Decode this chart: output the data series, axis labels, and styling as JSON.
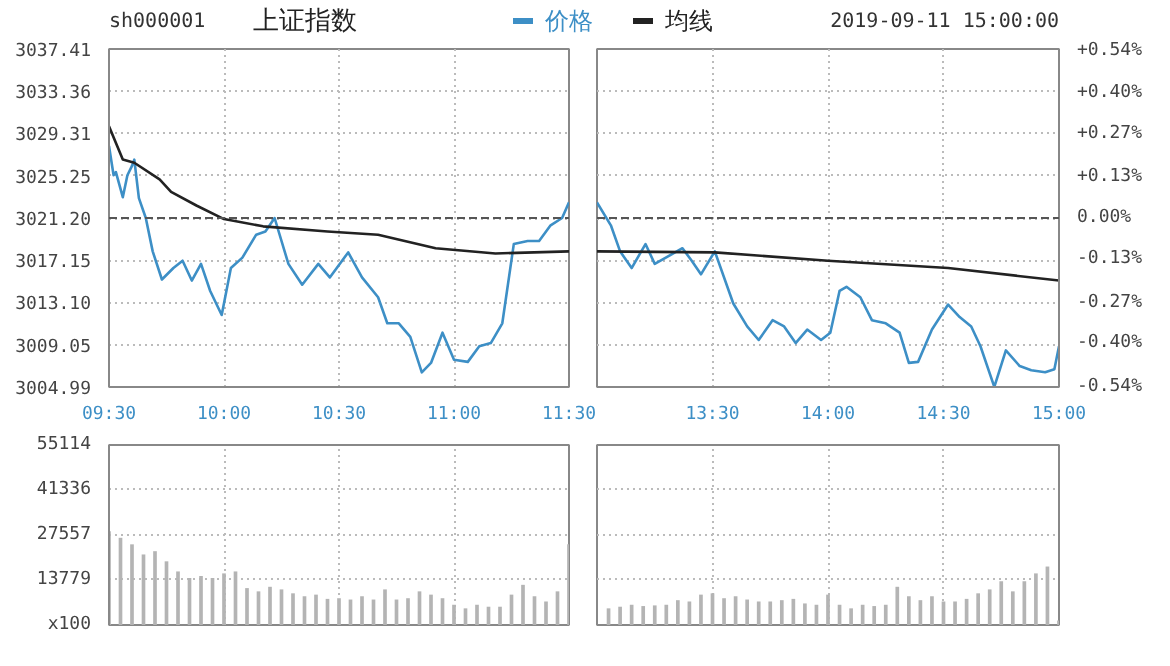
{
  "chart_data": [
    {
      "type": "line",
      "title": "上证指数",
      "annotations": [
        "sh000001",
        "2019-09-11 15:00:00"
      ],
      "legend": "top",
      "grid": true,
      "xlim": [
        9.5,
        11.5
      ],
      "xticks": [
        {
          "value": 9.5,
          "label": "09:30"
        },
        {
          "value": 10,
          "label": "10:00"
        },
        {
          "value": 10.5,
          "label": "10:30"
        },
        {
          "value": 11,
          "label": "11:00"
        },
        {
          "value": 11.5,
          "label": "11:30"
        }
      ],
      "ylim": [
        3004.99,
        3037.41
      ],
      "yticks": [
        3004.99,
        3009.05,
        {
          "value": 3013.1,
          "label": "3013.10"
        },
        3017.15,
        {
          "value": 3021.2,
          "label": "3021.20"
        },
        3025.25,
        3029.31,
        3033.36,
        3037.41
      ],
      "ref_lines": [
        {
          "axis": "y",
          "value": 3021.2,
          "color": "#555555",
          "line_style": "dashed"
        }
      ],
      "series": [
        {
          "name": "价格",
          "color": "#3d8fc6",
          "x": [
            9.5,
            9.52,
            9.53,
            9.56,
            9.58,
            9.6,
            9.61,
            9.63,
            9.66,
            9.69,
            9.73,
            9.78,
            9.82,
            9.86,
            9.9,
            9.94,
            9.99,
            10.03,
            10.08,
            10.14,
            10.18,
            10.22,
            10.28,
            10.34,
            10.41,
            10.46,
            10.54,
            10.6,
            10.67,
            10.71,
            10.76,
            10.81,
            10.86,
            10.9,
            10.95,
            11,
            11.06,
            11.11,
            11.16,
            11.21,
            11.26,
            11.32,
            11.37,
            11.42,
            11.47,
            11.5
          ],
          "values": [
            3028.1,
            3025.3,
            3025.6,
            3023.2,
            3025.3,
            3026.2,
            3026.8,
            3023.1,
            3021.2,
            3018.0,
            3015.3,
            3016.4,
            3017.1,
            3015.2,
            3016.8,
            3014.2,
            3011.9,
            3016.4,
            3017.4,
            3019.6,
            3019.9,
            3021.2,
            3016.8,
            3014.8,
            3016.8,
            3015.5,
            3017.9,
            3015.5,
            3013.6,
            3011.1,
            3011.1,
            3009.8,
            3006.4,
            3007.3,
            3010.2,
            3007.6,
            3007.4,
            3008.9,
            3009.2,
            3011.1,
            3018.7,
            3019.0,
            3019.0,
            3020.5,
            3021.2,
            3022.7
          ]
        },
        {
          "name": "均线",
          "color": "#222222",
          "x": [
            9.5,
            9.56,
            9.61,
            9.72,
            9.77,
            9.88,
            10,
            10.17,
            10.45,
            10.67,
            10.92,
            11.18,
            11.5
          ],
          "values": [
            3030.0,
            3026.8,
            3026.5,
            3024.9,
            3023.7,
            3022.4,
            3021.1,
            3020.4,
            3019.9,
            3019.6,
            3018.3,
            3017.8,
            3018.0
          ]
        }
      ]
    },
    {
      "type": "line",
      "grid": true,
      "tick_labels": "x",
      "xlim": [
        13,
        15
      ],
      "xticks": [
        {
          "value": 13.5,
          "label": "13:30"
        },
        {
          "value": 14,
          "label": "14:00"
        },
        {
          "value": 14.5,
          "label": "14:30"
        },
        {
          "value": 15,
          "label": "15:00"
        }
      ],
      "ylim": [
        3004.99,
        3037.41
      ],
      "yticks": [
        3004.99,
        3009.05,
        3013.1,
        3017.15,
        3021.2,
        3025.25,
        3029.31,
        3033.36,
        3037.41
      ],
      "y2lim": [
        -0.54,
        0.54
      ],
      "y2ticks": [
        {
          "value": -0.54,
          "label": "-0.54%"
        },
        {
          "value": -0.4,
          "label": "-0.40%"
        },
        {
          "value": -0.27,
          "label": "-0.27%"
        },
        {
          "value": -0.13,
          "label": "-0.13%"
        },
        {
          "value": 0,
          "label": "0.00%"
        },
        {
          "value": 0.13,
          "label": "+0.13%"
        },
        {
          "value": 0.27,
          "label": "+0.27%"
        },
        {
          "value": 0.4,
          "label": "+0.40%"
        },
        {
          "value": 0.54,
          "label": "+0.54%"
        }
      ],
      "ref_lines": [
        {
          "axis": "y",
          "value": 3021.2,
          "color": "#555555",
          "line_style": "dashed"
        }
      ],
      "series": [
        {
          "color": "#3d8fc6",
          "x": [
            13,
            13.06,
            13.1,
            13.15,
            13.21,
            13.25,
            13.37,
            13.41,
            13.45,
            13.51,
            13.59,
            13.65,
            13.7,
            13.76,
            13.81,
            13.86,
            13.91,
            13.97,
            14.01,
            14.05,
            14.08,
            14.14,
            14.19,
            14.25,
            14.31,
            14.35,
            14.39,
            14.45,
            14.52,
            14.57,
            14.62,
            14.66,
            14.72,
            14.77,
            14.83,
            14.88,
            14.94,
            14.98,
            15
          ],
          "values": [
            3022.7,
            3020.5,
            3018.0,
            3016.4,
            3018.7,
            3016.8,
            3018.3,
            3017.1,
            3015.8,
            3018.0,
            3013.0,
            3010.8,
            3009.5,
            3011.4,
            3010.8,
            3009.2,
            3010.5,
            3009.5,
            3010.2,
            3014.2,
            3014.6,
            3013.6,
            3011.4,
            3011.1,
            3010.2,
            3007.3,
            3007.4,
            3010.5,
            3012.9,
            3011.7,
            3010.8,
            3008.9,
            3005.0,
            3008.5,
            3007.0,
            3006.6,
            3006.4,
            3006.7,
            3008.9
          ]
        },
        {
          "color": "#222222",
          "x": [
            13,
            13.51,
            14,
            14.52,
            15
          ],
          "values": [
            3018.0,
            3017.9,
            3017.1,
            3016.4,
            3015.2
          ]
        }
      ]
    },
    {
      "type": "bar",
      "color": "#b4b4b4",
      "grid": true,
      "tick_labels": "y",
      "xlim": [
        9.5,
        11.5
      ],
      "xticks": [
        9.5,
        10,
        10.5,
        11,
        11.5
      ],
      "ylim": [
        0,
        55114
      ],
      "yticks": [
        {
          "value": 0,
          "label": "x100"
        },
        13779,
        27557,
        41336,
        55114
      ],
      "x": [
        9.5,
        9.55,
        9.6,
        9.65,
        9.7,
        9.75,
        9.8,
        9.85,
        9.9,
        9.95,
        10,
        10.05,
        10.1,
        10.15,
        10.2,
        10.25,
        10.3,
        10.35,
        10.4,
        10.45,
        10.5,
        10.55,
        10.6,
        10.65,
        10.7,
        10.75,
        10.8,
        10.85,
        10.9,
        10.95,
        11,
        11.05,
        11.1,
        11.15,
        11.2,
        11.25,
        11.3,
        11.35,
        11.4,
        11.45,
        11.5
      ],
      "values": [
        28700,
        26700,
        24700,
        21600,
        22600,
        19500,
        16400,
        14400,
        15000,
        14400,
        15800,
        16400,
        11300,
        10300,
        11700,
        10900,
        9700,
        8800,
        9300,
        8000,
        8200,
        7800,
        8800,
        7800,
        10900,
        7800,
        8200,
        10300,
        9300,
        8200,
        6200,
        5100,
        6200,
        5600,
        5600,
        9300,
        12300,
        8800,
        7200,
        10300,
        24700
      ]
    },
    {
      "type": "bar",
      "color": "#b4b4b4",
      "grid": true,
      "tick_labels": false,
      "xlim": [
        13,
        15
      ],
      "xticks": [
        13.5,
        14,
        14.5,
        15
      ],
      "ylim": [
        0,
        55114
      ],
      "yticks": [
        0,
        13779,
        27557,
        41336,
        55114
      ],
      "x": [
        13.05,
        13.1,
        13.15,
        13.2,
        13.25,
        13.3,
        13.35,
        13.4,
        13.45,
        13.5,
        13.55,
        13.6,
        13.65,
        13.7,
        13.75,
        13.8,
        13.85,
        13.9,
        13.95,
        14,
        14.05,
        14.1,
        14.15,
        14.2,
        14.25,
        14.3,
        14.35,
        14.4,
        14.45,
        14.5,
        14.55,
        14.6,
        14.65,
        14.7,
        14.75,
        14.8,
        14.85,
        14.9,
        14.95,
        15
      ],
      "values": [
        5100,
        5600,
        6200,
        5800,
        6000,
        6200,
        7600,
        7200,
        9300,
        9700,
        8200,
        8800,
        7800,
        7200,
        7200,
        7600,
        8000,
        6600,
        6200,
        9300,
        6200,
        5100,
        6200,
        5800,
        6200,
        11700,
        8800,
        7600,
        8800,
        7200,
        7200,
        8000,
        9700,
        10900,
        13400,
        10300,
        13400,
        15800,
        17900,
        1400
      ]
    }
  ]
}
